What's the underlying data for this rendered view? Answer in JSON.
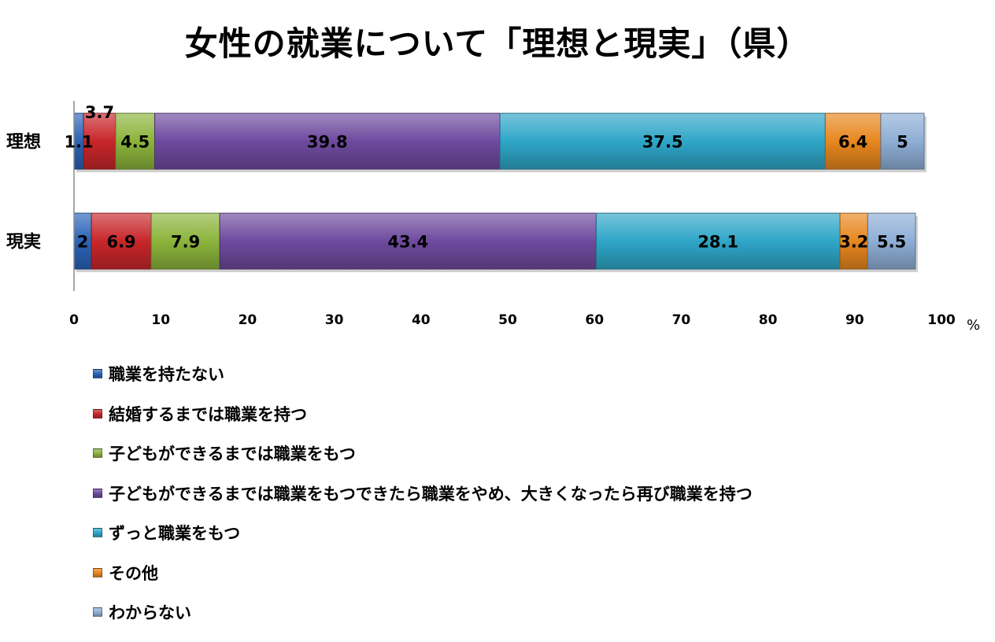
{
  "chart_data": {
    "type": "bar",
    "orientation": "horizontal",
    "stacked": true,
    "title": "女性の就業について「理想と現実」（県）",
    "categories": [
      "理想",
      "現実"
    ],
    "xlim": [
      0,
      100
    ],
    "x_ticks": [
      "0",
      "10",
      "20",
      "30",
      "40",
      "50",
      "60",
      "70",
      "80",
      "90",
      "100"
    ],
    "x_unit": "%",
    "grid": false,
    "legend_position": "bottom-left",
    "series": [
      {
        "name": "職業を持たない",
        "color": "#2a64b8",
        "values": [
          1.1,
          2
        ],
        "labels": [
          "1.1",
          "2"
        ]
      },
      {
        "name": "結婚するまでは職業を持つ",
        "color": "#c8262a",
        "values": [
          3.7,
          6.9
        ],
        "labels": [
          "3.7",
          "6.9"
        ]
      },
      {
        "name": "子どもができるまでは職業をもつ",
        "color": "#8cb43c",
        "values": [
          4.5,
          7.9
        ],
        "labels": [
          "4.5",
          "7.9"
        ]
      },
      {
        "name": "子どもができるまでは職業をもつできたら職業をやめ、大きくなったら再び職業を持つ",
        "color": "#6e4a9e",
        "values": [
          39.8,
          43.4
        ],
        "labels": [
          "39.8",
          "43.4"
        ]
      },
      {
        "name": "ずっと職業をもつ",
        "color": "#2fa6c8",
        "values": [
          37.5,
          28.1
        ],
        "labels": [
          "37.5",
          "28.1"
        ]
      },
      {
        "name": "その他",
        "color": "#e8871e",
        "values": [
          6.4,
          3.2
        ],
        "labels": [
          "6.4",
          "3.2"
        ]
      },
      {
        "name": "わからない",
        "color": "#8eaed6",
        "values": [
          5,
          5.5
        ],
        "labels": [
          "5",
          "5.5"
        ]
      }
    ]
  }
}
